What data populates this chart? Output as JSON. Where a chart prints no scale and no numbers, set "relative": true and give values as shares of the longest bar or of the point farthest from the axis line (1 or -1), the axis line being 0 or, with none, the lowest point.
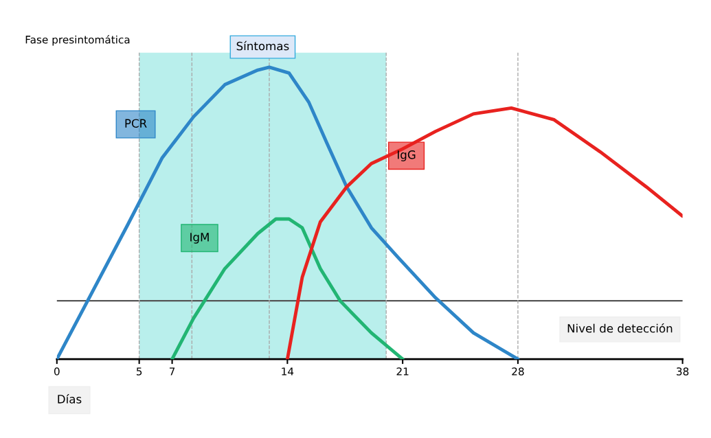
{
  "chart_data": {
    "type": "line",
    "relative": true,
    "xlabel": "Días",
    "x": [
      0,
      4.3,
      6.4,
      8.3,
      10.2,
      12.2,
      12.9,
      14.1,
      15.3,
      16.4,
      17.6,
      19.1,
      20.7,
      23,
      25.3,
      28
    ],
    "series": [
      {
        "name": "PCR",
        "color": "#2e86c8",
        "values": [
          0,
          0.46,
          0.69,
          0.83,
          0.94,
          0.99,
          1.0,
          0.98,
          0.88,
          0.74,
          0.59,
          0.45,
          0.35,
          0.21,
          0.09,
          0
        ]
      },
      {
        "name": "IgM",
        "color": "#22b573",
        "x": [
          7,
          8.3,
          10.2,
          12.2,
          13.3,
          14.1,
          14.9,
          16,
          17.2,
          19.1,
          21
        ],
        "values": [
          0,
          0.14,
          0.31,
          0.43,
          0.48,
          0.48,
          0.45,
          0.31,
          0.2,
          0.09,
          0
        ]
      },
      {
        "name": "IgG",
        "color": "#e8221f",
        "x": [
          14,
          14.9,
          16,
          17.6,
          19.1,
          21,
          23,
          25.3,
          27.6,
          30.2,
          33,
          35.8,
          38
        ],
        "values": [
          0,
          0.28,
          0.47,
          0.59,
          0.67,
          0.72,
          0.78,
          0.84,
          0.86,
          0.82,
          0.71,
          0.59,
          0.49
        ]
      }
    ],
    "xlim": [
      0,
      38
    ],
    "xticks": [
      0,
      5,
      7,
      14,
      21,
      28,
      38
    ],
    "bands": [
      {
        "axis": "x",
        "from": 5,
        "to": 20,
        "label": "Síntomas",
        "color": "#b9efec"
      }
    ],
    "ref_lines": [
      {
        "axis": "y",
        "value": 0.2,
        "label": "Nivel de detección",
        "color": "#555555",
        "line_style": "solid"
      },
      {
        "axis": "x",
        "value": 5,
        "color": "#aaaaaa",
        "line_style": "dashed"
      },
      {
        "axis": "x",
        "value": 8.2,
        "color": "#aaaaaa",
        "line_style": "dashed"
      },
      {
        "axis": "x",
        "value": 12.9,
        "color": "#aaaaaa",
        "line_style": "dashed"
      },
      {
        "axis": "x",
        "value": 20,
        "color": "#aaaaaa",
        "line_style": "dashed"
      },
      {
        "axis": "x",
        "value": 28,
        "color": "#aaaaaa",
        "line_style": "dashed"
      }
    ],
    "annotations": [
      "Fase presintomática"
    ],
    "legend": false,
    "grid": false,
    "marker": "none",
    "line_style": "solid"
  }
}
